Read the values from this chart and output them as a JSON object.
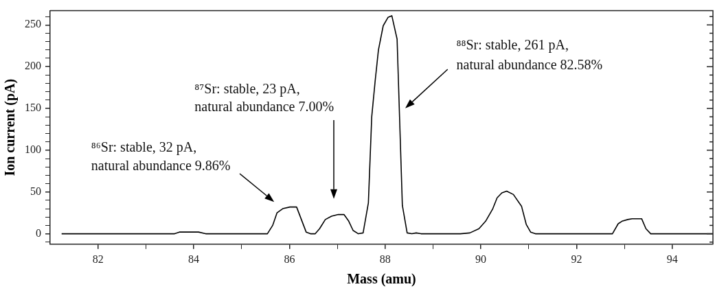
{
  "chart_data": {
    "type": "line",
    "xlabel": "Mass (amu)",
    "ylabel": "Ion current (pA)",
    "x": [
      81.24,
      82,
      83,
      83.6,
      83.7,
      84.1,
      84.25,
      85,
      85.54,
      85.65,
      85.74,
      85.86,
      86.01,
      86.15,
      86.35,
      86.44,
      86.54,
      86.63,
      86.75,
      86.88,
      87.02,
      87.14,
      87.24,
      87.33,
      87.44,
      87.54,
      87.65,
      87.72,
      87.79,
      87.86,
      87.96,
      88.06,
      88.14,
      88.25,
      88.36,
      88.46,
      88.56,
      88.65,
      88.75,
      89.57,
      89.77,
      89.96,
      90.1,
      90.25,
      90.34,
      90.44,
      90.54,
      90.68,
      90.85,
      90.95,
      91.04,
      91.14,
      92.75,
      92.87,
      92.95,
      93.07,
      93.16,
      93.36,
      93.45,
      93.55,
      94.85
    ],
    "series": [
      {
        "color": "#000000",
        "values": [
          0,
          0,
          0,
          0,
          2,
          2,
          0,
          0,
          0,
          10,
          25,
          30,
          32,
          32,
          2,
          0,
          0,
          6,
          17,
          21,
          23,
          23,
          15,
          4,
          0,
          1,
          37,
          140,
          182,
          220,
          249,
          259,
          261,
          233,
          34,
          1,
          0,
          1,
          0,
          0,
          1,
          6,
          15,
          30,
          43,
          49,
          51,
          47,
          33,
          11,
          2,
          0,
          0,
          12,
          15,
          17,
          18,
          18,
          6,
          0,
          0
        ]
      }
    ],
    "xlim": [
      81,
      94.85
    ],
    "ylim": [
      -12.5,
      267
    ],
    "xticks": [
      82,
      {
        "value": 83,
        "label": null
      },
      84,
      {
        "value": 85,
        "label": null
      },
      86,
      {
        "value": 87,
        "label": null
      },
      88,
      {
        "value": 89,
        "label": null
      },
      90,
      {
        "value": 91,
        "label": null
      },
      92,
      {
        "value": 93,
        "label": null
      },
      94
    ],
    "yticks": [
      {
        "value": -10,
        "label": null
      },
      0,
      {
        "value": 10,
        "label": null
      },
      {
        "value": 20,
        "label": null
      },
      {
        "value": 30,
        "label": null
      },
      {
        "value": 40,
        "label": null
      },
      50,
      {
        "value": 60,
        "label": null
      },
      {
        "value": 70,
        "label": null
      },
      {
        "value": 80,
        "label": null
      },
      {
        "value": 90,
        "label": null
      },
      100,
      {
        "value": 110,
        "label": null
      },
      {
        "value": 120,
        "label": null
      },
      {
        "value": 130,
        "label": null
      },
      {
        "value": 140,
        "label": null
      },
      150,
      {
        "value": 160,
        "label": null
      },
      {
        "value": 170,
        "label": null
      },
      {
        "value": 180,
        "label": null
      },
      {
        "value": 190,
        "label": null
      },
      200,
      {
        "value": 210,
        "label": null
      },
      {
        "value": 220,
        "label": null
      },
      {
        "value": 230,
        "label": null
      },
      {
        "value": 240,
        "label": null
      },
      250,
      {
        "value": 260,
        "label": null
      }
    ],
    "grid": false,
    "legend": false,
    "marker": "none",
    "line_style": "solid",
    "annotations": [
      "⁸⁶Sr: stable, 32 pA,\nnatural abundance 9.86%",
      "⁸⁷Sr: stable, 23 pA,\nnatural abundance 7.00%",
      "⁸⁸Sr: stable, 261 pA,\nnatural abundance 82.58%"
    ]
  }
}
